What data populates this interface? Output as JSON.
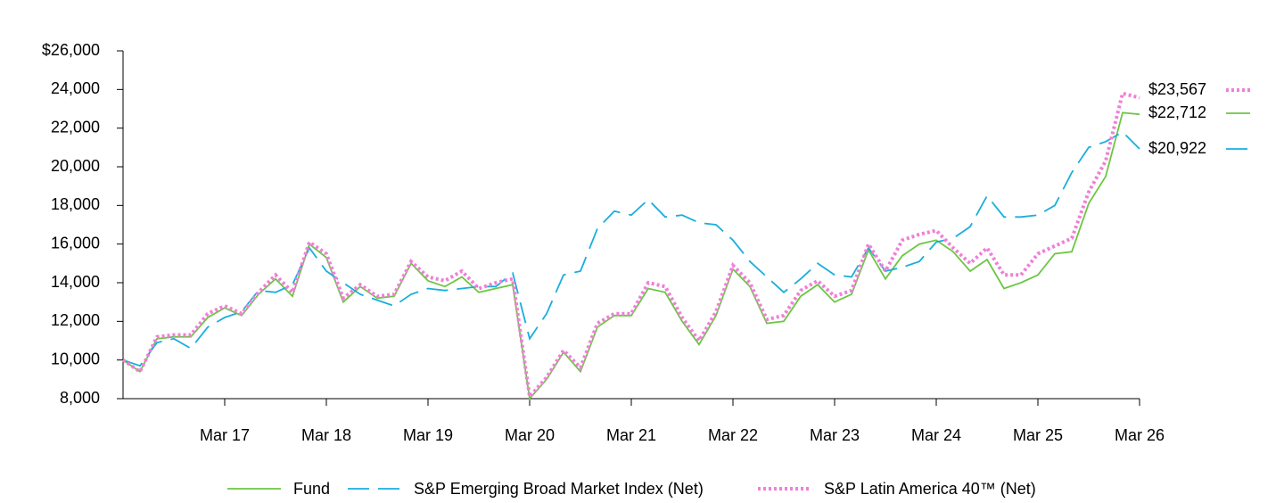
{
  "chart_data": {
    "type": "line",
    "categories": [
      null,
      null,
      null,
      null,
      null,
      null,
      "Mar 17",
      null,
      null,
      null,
      null,
      null,
      "Mar 18",
      null,
      null,
      null,
      null,
      null,
      "Mar 19",
      null,
      null,
      null,
      null,
      null,
      "Mar 20",
      null,
      null,
      null,
      null,
      null,
      "Mar 21",
      null,
      null,
      null,
      null,
      null,
      "Mar 22",
      null,
      null,
      null,
      null,
      null,
      "Mar 23",
      null,
      null,
      null,
      null,
      null,
      "Mar 24",
      null,
      null,
      null,
      null,
      null,
      "Mar 25",
      null,
      null,
      null,
      null,
      null,
      "Mar 26"
    ],
    "series": [
      {
        "name": "Fund",
        "color": "#6cc644",
        "style": "solid",
        "values": [
          10000,
          9400,
          11100,
          11200,
          11200,
          12200,
          12700,
          12300,
          13400,
          14200,
          13300,
          16000,
          15300,
          13000,
          13800,
          13200,
          13300,
          15000,
          14100,
          13800,
          14300,
          13500,
          13700,
          13900,
          8000,
          9000,
          10400,
          9400,
          11700,
          12300,
          12300,
          13700,
          13500,
          12000,
          10800,
          12300,
          14700,
          13800,
          11900,
          12000,
          13300,
          13900,
          13000,
          13400,
          15700,
          14200,
          15400,
          16000,
          16200,
          15600,
          14600,
          15200,
          13700,
          14000,
          14400,
          15500,
          15600,
          18100,
          19500,
          22800,
          22712
        ],
        "value_labels": [
          null,
          null,
          null,
          null,
          null,
          null,
          null,
          null,
          null,
          null,
          null,
          null,
          null,
          null,
          null,
          null,
          null,
          null,
          null,
          null,
          null,
          null,
          null,
          null,
          null,
          null,
          null,
          null,
          null,
          null,
          null,
          null,
          null,
          null,
          null,
          null,
          null,
          null,
          null,
          null,
          null,
          null,
          null,
          null,
          null,
          null,
          null,
          null,
          null,
          null,
          null,
          null,
          null,
          null,
          null,
          null,
          null,
          null,
          null,
          null,
          "$22,712"
        ]
      },
      {
        "name": "S&P Emerging Broad Market Index (Net)",
        "color": "#1aaedc",
        "style": "dashed",
        "values": [
          10000,
          9700,
          10900,
          11100,
          10600,
          11700,
          12200,
          12500,
          13600,
          13500,
          13900,
          15800,
          14600,
          14000,
          13400,
          13100,
          12800,
          13400,
          13700,
          13600,
          13700,
          13800,
          13800,
          14500,
          11100,
          12400,
          14400,
          14600,
          16800,
          17700,
          17500,
          18300,
          17400,
          17500,
          17100,
          17000,
          16200,
          15100,
          14300,
          13500,
          14200,
          15000,
          14400,
          14300,
          15800,
          14600,
          14800,
          15100,
          16100,
          16300,
          16900,
          18500,
          17400,
          17400,
          17500,
          18000,
          19700,
          21000,
          21300,
          21800,
          20922
        ],
        "value_labels": [
          null,
          null,
          null,
          null,
          null,
          null,
          null,
          null,
          null,
          null,
          null,
          null,
          null,
          null,
          null,
          null,
          null,
          null,
          null,
          null,
          null,
          null,
          null,
          null,
          null,
          null,
          null,
          null,
          null,
          null,
          null,
          null,
          null,
          null,
          null,
          null,
          null,
          null,
          null,
          null,
          null,
          null,
          null,
          null,
          null,
          null,
          null,
          null,
          null,
          null,
          null,
          null,
          null,
          null,
          null,
          null,
          null,
          null,
          null,
          null,
          "$20,922"
        ]
      },
      {
        "name": "S&P Latin America 40™ (Net)",
        "color": "#f07fd8",
        "style": "dotted",
        "values": [
          10000,
          9400,
          11200,
          11300,
          11300,
          12400,
          12800,
          12400,
          13500,
          14400,
          13500,
          16100,
          15500,
          13200,
          13900,
          13300,
          13400,
          15100,
          14300,
          14100,
          14600,
          13700,
          14000,
          14200,
          8100,
          9100,
          10500,
          9600,
          11900,
          12400,
          12400,
          14000,
          13800,
          12200,
          11000,
          12500,
          14900,
          14000,
          12100,
          12300,
          13600,
          14100,
          13300,
          13600,
          16000,
          14600,
          16200,
          16500,
          16700,
          15800,
          15000,
          15800,
          14400,
          14400,
          15500,
          15900,
          16300,
          18700,
          20300,
          23800,
          23567
        ],
        "value_labels": [
          null,
          null,
          null,
          null,
          null,
          null,
          null,
          null,
          null,
          null,
          null,
          null,
          null,
          null,
          null,
          null,
          null,
          null,
          null,
          null,
          null,
          null,
          null,
          null,
          null,
          null,
          null,
          null,
          null,
          null,
          null,
          null,
          null,
          null,
          null,
          null,
          null,
          null,
          null,
          null,
          null,
          null,
          null,
          null,
          null,
          null,
          null,
          null,
          null,
          null,
          null,
          null,
          null,
          null,
          null,
          null,
          null,
          null,
          null,
          null,
          "$23,567"
        ]
      }
    ],
    "ylim": [
      8000,
      26000
    ],
    "yticks": [
      {
        "value": 8000,
        "label": "8,000"
      },
      {
        "value": 10000,
        "label": "10,000"
      },
      {
        "value": 12000,
        "label": "12,000"
      },
      {
        "value": 14000,
        "label": "14,000"
      },
      {
        "value": 16000,
        "label": "16,000"
      },
      {
        "value": 18000,
        "label": "18,000"
      },
      {
        "value": 20000,
        "label": "20,000"
      },
      {
        "value": 22000,
        "label": "22,000"
      },
      {
        "value": 24000,
        "label": "24,000"
      },
      {
        "value": 26000,
        "label": "$26,000"
      }
    ],
    "grid": false,
    "legend": "bottom"
  }
}
